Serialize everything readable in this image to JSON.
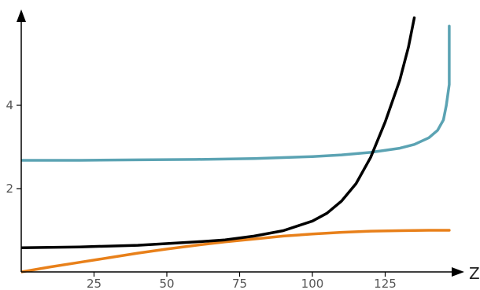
{
  "chart_data": {
    "type": "line",
    "xlabel": "Z",
    "ylabel": "",
    "xlim": [
      0,
      147
    ],
    "ylim": [
      0,
      6.2
    ],
    "x_ticks": [
      25,
      50,
      75,
      100,
      125
    ],
    "y_ticks": [
      2,
      4
    ],
    "grid": false,
    "legend": "none",
    "series": [
      {
        "color": "#e8801a",
        "x": [
          0,
          10,
          20,
          30,
          40,
          50,
          60,
          70,
          80,
          90,
          100,
          110,
          120,
          130,
          140,
          147
        ],
        "y": [
          0.0,
          0.12,
          0.23,
          0.34,
          0.45,
          0.55,
          0.64,
          0.72,
          0.79,
          0.86,
          0.91,
          0.95,
          0.98,
          0.99,
          1.0,
          1.0
        ]
      },
      {
        "color": "#5ba3b3",
        "x": [
          0,
          20,
          40,
          60,
          80,
          100,
          110,
          120,
          130,
          135,
          140,
          143,
          145,
          146,
          147,
          147
        ],
        "y": [
          2.68,
          2.68,
          2.69,
          2.7,
          2.72,
          2.77,
          2.81,
          2.87,
          2.97,
          3.06,
          3.22,
          3.4,
          3.65,
          4.0,
          4.5,
          5.9
        ]
      },
      {
        "color": "#000000",
        "x": [
          0,
          20,
          40,
          60,
          70,
          80,
          90,
          100,
          105,
          110,
          115,
          120,
          125,
          130,
          133,
          135
        ],
        "y": [
          0.58,
          0.6,
          0.64,
          0.72,
          0.77,
          0.86,
          0.99,
          1.22,
          1.41,
          1.7,
          2.12,
          2.75,
          3.6,
          4.6,
          5.4,
          6.1
        ]
      }
    ]
  }
}
